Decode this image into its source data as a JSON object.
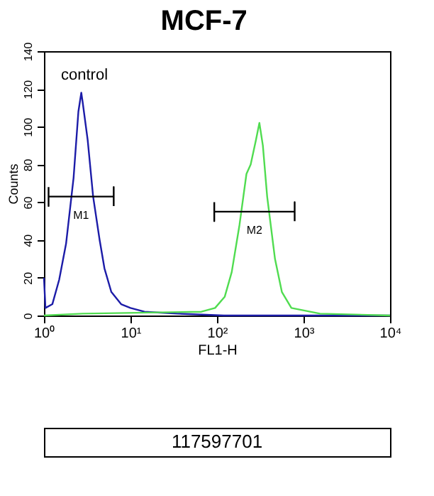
{
  "chart_data": {
    "type": "line",
    "title": "MCF-7",
    "xlabel": "FL1-H",
    "ylabel": "Counts",
    "log": "x",
    "grid": false,
    "legend": false,
    "marker": "none",
    "line_style": "solid",
    "xlim": [
      1,
      10000
    ],
    "xticks": [
      {
        "value": 1,
        "label": "10⁰"
      },
      {
        "value": 10,
        "label": "10¹"
      },
      {
        "value": 100,
        "label": "10²"
      },
      {
        "value": 1000,
        "label": "10³"
      },
      {
        "value": 10000,
        "label": "10⁴"
      }
    ],
    "ylim": [
      0,
      140
    ],
    "yticks": [
      0,
      20,
      40,
      60,
      80,
      100,
      120,
      140
    ],
    "series": [
      {
        "color": "#1c1ca8",
        "x": [
          1,
          1.04,
          1.25,
          1.5,
          1.8,
          2.2,
          2.5,
          2.7,
          2.8,
          3.2,
          3.7,
          4.4,
          5,
          6,
          7.8,
          10,
          14.5,
          35,
          120,
          10000
        ],
        "values": [
          20,
          4,
          6,
          19,
          38,
          73,
          108,
          118,
          113,
          93,
          63,
          40,
          25,
          12.5,
          6,
          4,
          2,
          1,
          0,
          0
        ]
      },
      {
        "color": "#50dc50",
        "x": [
          1,
          2.8,
          66,
          95,
          123,
          148,
          182,
          219,
          245,
          282,
          309,
          339,
          380,
          468,
          562,
          724,
          1550,
          10000
        ],
        "values": [
          0,
          1,
          2,
          4,
          10,
          23,
          48,
          75,
          80,
          93,
          102,
          90,
          63,
          30,
          12.5,
          4,
          1,
          0
        ]
      },
      {
        "color": "#000000",
        "x": [
          1.13,
          1.13,
          1.13,
          6.4,
          6.4,
          6.4
        ],
        "values": [
          68,
          58,
          63,
          63,
          68,
          58
        ]
      },
      {
        "color": "#000000",
        "x": [
          93,
          93,
          93,
          790,
          790,
          790
        ],
        "values": [
          60,
          50,
          55,
          55,
          60,
          50
        ]
      }
    ],
    "annotations": [
      "control",
      "M1",
      "M2",
      "117597701"
    ]
  }
}
